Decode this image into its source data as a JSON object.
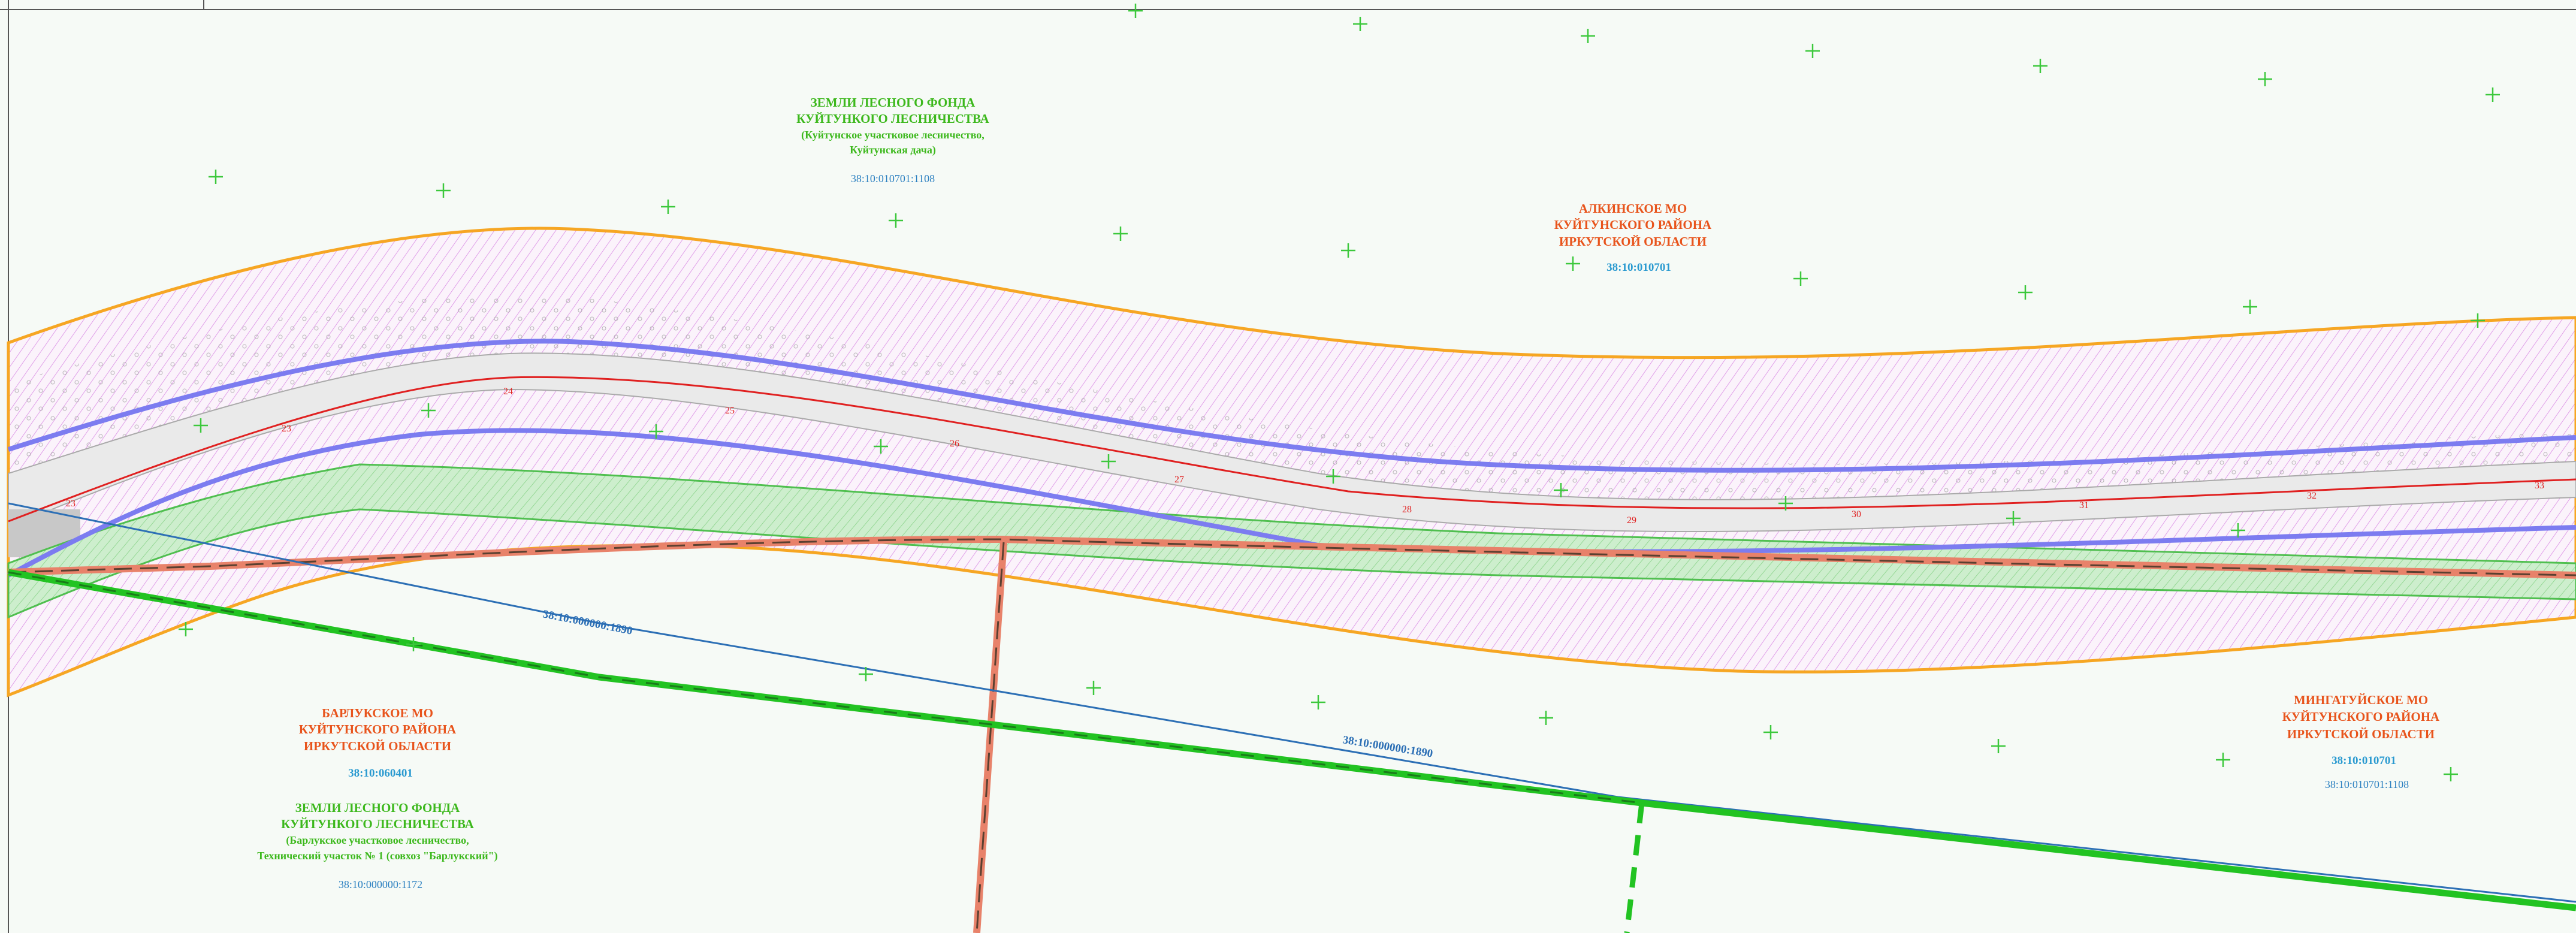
{
  "areas": {
    "forest_top": {
      "lines": [
        "ЗЕМЛИ ЛЕСНОГО ФОНДА",
        "КУЙТУНКОГО ЛЕСНИЧЕСТВА",
        "(Куйтунское участковое лесничество,",
        "Куйтунская дача)"
      ],
      "cadastral": "38:10:010701:1108"
    },
    "alkinskoe": {
      "lines": [
        "АЛКИНСКОЕ МО",
        "КУЙТУНСКОГО РАЙОНА",
        "ИРКУТСКОЙ ОБЛАСТИ"
      ],
      "cadastral": "38:10:010701"
    },
    "barlukskoe": {
      "lines": [
        "БАРЛУКСКОЕ МО",
        "КУЙТУНСКОГО РАЙОНА",
        "ИРКУТСКОЙ ОБЛАСТИ"
      ],
      "cadastral": "38:10:060401"
    },
    "forest_bottom": {
      "lines": [
        "ЗЕМЛИ ЛЕСНОГО ФОНДА",
        "КУЙТУНКОГО ЛЕСНИЧЕСТВА",
        "(Барлукское участковое лесничество,",
        "Технический участок № 1 (совхоз \"Барлукский\")"
      ],
      "cadastral": "38:10:000000:1172"
    },
    "mingatuyskoe": {
      "lines": [
        "МИНГАТУЙСКОЕ МО",
        "КУЙТУНСКОГО РАЙОНА",
        "ИРКУТСКОЙ ОБЛАСТИ"
      ],
      "cadastral": "38:10:010701",
      "cadastral_2": "38:10:010701:1108"
    }
  },
  "parcel_labels": [
    "38:10:000000:1890",
    "38:10:000000:1890"
  ],
  "pickets": [
    "23",
    "23",
    "24",
    "25",
    "26",
    "27",
    "28",
    "29",
    "30",
    "31",
    "32",
    "33"
  ],
  "colors": {
    "background": "#f6faf6",
    "forest_text": "#3cb81c",
    "district_text": "#e8541c",
    "cadastral_text": "#2a7fc0",
    "parcel_line": "#2c6fb5",
    "right_of_way": "#f6a623",
    "hatch": "#c86ad8",
    "road_axis": "#e02020",
    "centerline_buffer": "#7c7cf0",
    "green_strip": "#9ee09e",
    "bold_boundary": "#22c322",
    "gas_pipe": "#e8826a"
  }
}
